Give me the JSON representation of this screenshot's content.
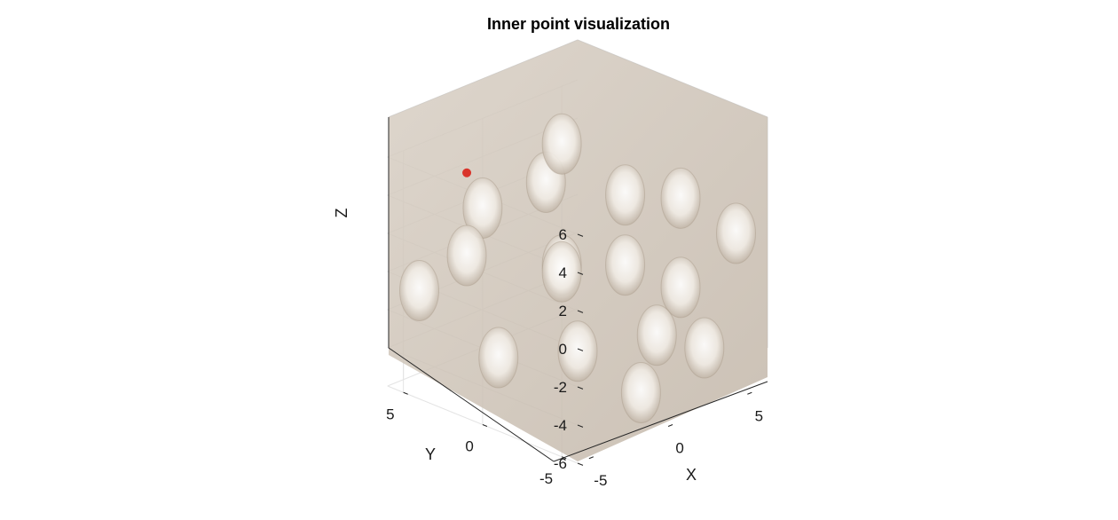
{
  "chart_data": {
    "type": "scatter",
    "title": "Inner point visualization",
    "xlabel": "X",
    "ylabel": "Y",
    "zlabel": "Z",
    "xlim": [
      -6,
      6
    ],
    "ylim": [
      -6,
      6
    ],
    "zlim": [
      -6,
      6
    ],
    "xticks": [
      "-5",
      "0",
      "5"
    ],
    "yticks": [
      "-5",
      "0",
      "5"
    ],
    "zticks": [
      "-6",
      "-4",
      "-2",
      "0",
      "2",
      "4",
      "6"
    ],
    "grid": true,
    "series": [
      {
        "x": [
          -2.5
        ],
        "y": [
          4.5
        ],
        "z": [
          4.5
        ],
        "color": "#d9342b"
      }
    ],
    "surface": {
      "description": "",
      "color": "#cdc2b6"
    }
  }
}
